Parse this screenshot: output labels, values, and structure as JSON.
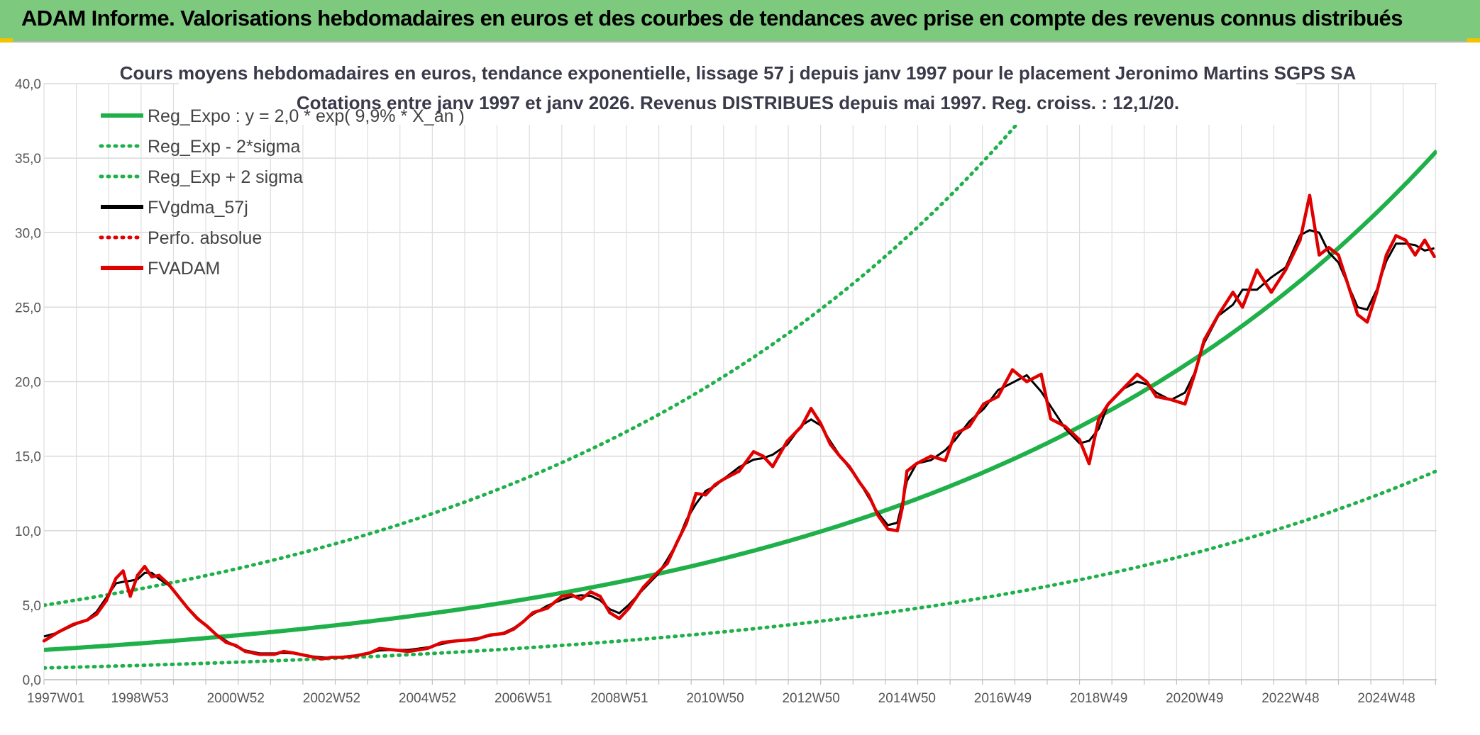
{
  "banner": {
    "title": "ADAM Informe. Valorisations hebdomadaires en euros et des courbes de tendances avec prise en compte des revenus connus distribués",
    "background_color": "#7dc97d"
  },
  "chart_data": {
    "type": "line",
    "title": "Cours moyens hebdomadaires en euros, tendance exponentielle, lissage 57 j depuis janv 1997 pour le placement Jeronimo Martins SGPS SA",
    "subtitle": "Cotations entre janv 1997 et janv 2026. Revenus DISTRIBUES depuis mai 1997. Reg. croiss. : 12,1/20.",
    "xlabel": "",
    "ylabel": "",
    "x_range": [
      1997.0,
      2026.05
    ],
    "ylim": [
      0,
      40
    ],
    "y_ticks": [
      "0,0",
      "5,0",
      "10,0",
      "15,0",
      "20,0",
      "25,0",
      "30,0",
      "35,0",
      "40,0"
    ],
    "x_tick_labels": [
      "1997W01",
      "1998W53",
      "2000W52",
      "2002W52",
      "2004W52",
      "2006W51",
      "2008W51",
      "2010W50",
      "2012W50",
      "2014W50",
      "2016W49",
      "2018W49",
      "2020W49",
      "2022W48",
      "2024W48"
    ],
    "x_tick_years": [
      1997.0,
      1999.0,
      2001.0,
      2003.0,
      2005.0,
      2007.0,
      2009.0,
      2011.0,
      2013.0,
      2015.0,
      2017.0,
      2019.0,
      2021.0,
      2023.0,
      2025.0
    ],
    "grid": true,
    "legend_position": "top-left",
    "series": [
      {
        "name": "Reg_Expo : y = 2,0 * exp( 9,9% *  X_an )",
        "style": "solid",
        "color": "#1fb04a",
        "a": 2.0,
        "rate": 0.099,
        "start_year": 1997
      },
      {
        "name": "Reg_Exp - 2*sigma",
        "style": "dotted",
        "color": "#1fb04a",
        "a": 0.79,
        "rate": 0.099,
        "start_year": 1997
      },
      {
        "name": "Reg_Exp + 2 sigma",
        "style": "dotted",
        "color": "#1fb04a",
        "a": 5.0,
        "rate": 0.099,
        "start_year": 1997
      },
      {
        "name": "FVgdma_57j",
        "style": "solid",
        "color": "#000000"
      },
      {
        "name": "Perfo. absolue",
        "style": "dotted",
        "color": "#e00000"
      },
      {
        "name": "FVADAM",
        "style": "solid",
        "color": "#e00000",
        "x": [
          1997.0,
          1997.3,
          1997.6,
          1997.9,
          1998.1,
          1998.3,
          1998.5,
          1998.65,
          1998.8,
          1998.95,
          1999.1,
          1999.25,
          1999.4,
          1999.6,
          1999.8,
          2000.0,
          2000.2,
          2000.4,
          2000.6,
          2000.8,
          2001.0,
          2001.2,
          2001.5,
          2001.8,
          2002.0,
          2002.2,
          2002.5,
          2002.8,
          2003.0,
          2003.2,
          2003.5,
          2003.8,
          2004.0,
          2004.3,
          2004.6,
          2005.0,
          2005.3,
          2005.6,
          2006.0,
          2006.3,
          2006.6,
          2006.8,
          2007.0,
          2007.2,
          2007.5,
          2007.8,
          2008.0,
          2008.2,
          2008.4,
          2008.6,
          2008.8,
          2009.0,
          2009.2,
          2009.5,
          2009.8,
          2010.0,
          2010.2,
          2010.4,
          2010.6,
          2010.8,
          2011.0,
          2011.2,
          2011.5,
          2011.8,
          2012.0,
          2012.2,
          2012.5,
          2012.8,
          2013.0,
          2013.2,
          2013.4,
          2013.6,
          2013.8,
          2014.0,
          2014.2,
          2014.4,
          2014.6,
          2014.8,
          2014.9,
          2015.0,
          2015.2,
          2015.5,
          2015.8,
          2016.0,
          2016.3,
          2016.6,
          2016.9,
          2017.2,
          2017.5,
          2017.8,
          2018.0,
          2018.3,
          2018.6,
          2018.8,
          2019.0,
          2019.2,
          2019.5,
          2019.8,
          2020.0,
          2020.2,
          2020.5,
          2020.8,
          2021.0,
          2021.2,
          2021.5,
          2021.8,
          2022.0,
          2022.3,
          2022.6,
          2022.9,
          2023.2,
          2023.4,
          2023.6,
          2023.8,
          2024.0,
          2024.2,
          2024.4,
          2024.6,
          2024.8,
          2025.0,
          2025.2,
          2025.4,
          2025.6,
          2025.8,
          2026.0
        ],
        "values": [
          2.6,
          3.2,
          3.7,
          4.0,
          4.4,
          5.3,
          6.8,
          7.3,
          5.6,
          7.0,
          7.6,
          6.9,
          7.0,
          6.4,
          5.6,
          4.8,
          4.1,
          3.6,
          3.0,
          2.5,
          2.3,
          1.9,
          1.7,
          1.7,
          1.9,
          1.8,
          1.6,
          1.4,
          1.5,
          1.5,
          1.6,
          1.8,
          2.1,
          2.0,
          1.9,
          2.1,
          2.5,
          2.6,
          2.7,
          3.0,
          3.1,
          3.4,
          3.9,
          4.5,
          4.8,
          5.6,
          5.7,
          5.4,
          5.9,
          5.6,
          4.5,
          4.1,
          4.8,
          6.2,
          7.2,
          7.8,
          9.2,
          10.5,
          12.5,
          12.4,
          13.1,
          13.5,
          14.0,
          15.3,
          15.0,
          14.3,
          16.0,
          17.0,
          18.2,
          17.2,
          15.8,
          15.0,
          14.3,
          13.3,
          12.4,
          11.0,
          10.1,
          10.0,
          11.5,
          14.0,
          14.5,
          15.0,
          14.7,
          16.5,
          17.0,
          18.5,
          19.0,
          20.8,
          20.0,
          20.5,
          17.5,
          17.0,
          16.1,
          14.5,
          17.5,
          18.5,
          19.5,
          20.5,
          20.0,
          19.0,
          18.8,
          18.5,
          20.5,
          22.8,
          24.5,
          26.0,
          25.0,
          27.5,
          26.0,
          27.5,
          29.5,
          32.5,
          28.5,
          29.0,
          28.5,
          26.5,
          24.5,
          24.0,
          26.0,
          28.5,
          29.8,
          29.5,
          28.5,
          29.5,
          28.4
        ]
      }
    ]
  }
}
